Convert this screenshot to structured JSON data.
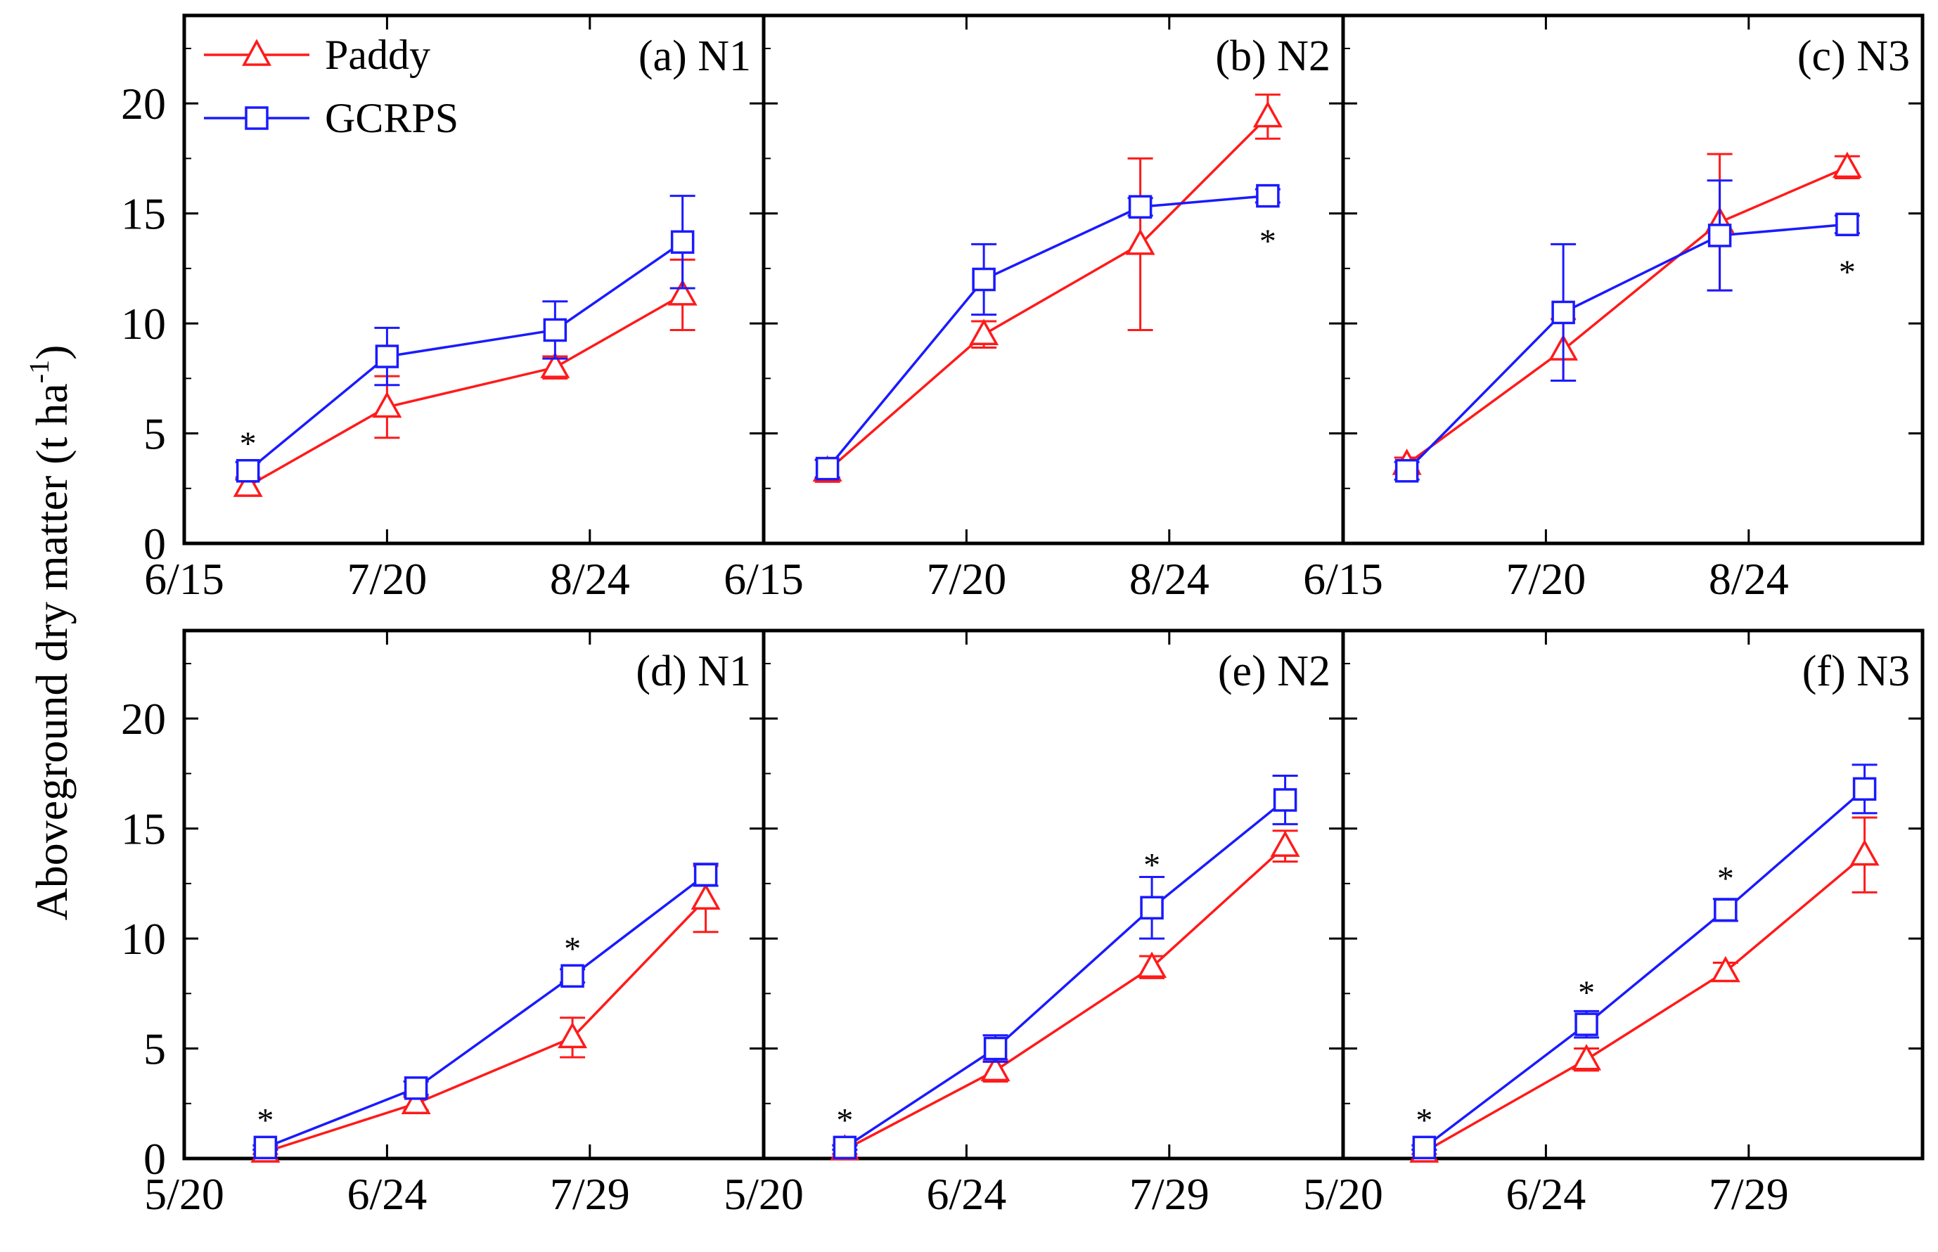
{
  "figure": {
    "ylabel": "Aboveground dry matter (t ha",
    "ylabel_sup": "-1",
    "ylabel_close": ")"
  },
  "legend": {
    "entries": [
      {
        "label": "Paddy",
        "color": "#ff1a1a",
        "marker": "triangle"
      },
      {
        "label": "GCRPS",
        "color": "#1a1aff",
        "marker": "square"
      }
    ]
  },
  "colors": {
    "paddy": "#ff1a1a",
    "gcrps": "#1a1aff",
    "axis": "#000000"
  },
  "chart_data": [
    {
      "type": "line",
      "panel": "(a) N1",
      "ylim": [
        0,
        24
      ],
      "yticks": [
        0,
        5,
        10,
        15,
        20
      ],
      "xlim": [
        0,
        100
      ],
      "xticks": [
        {
          "v": 0,
          "label": "6/15"
        },
        {
          "v": 35,
          "label": "7/20"
        },
        {
          "v": 70,
          "label": "8/24"
        }
      ],
      "series": [
        {
          "name": "Paddy",
          "x": [
            11,
            35,
            64,
            86
          ],
          "y": [
            2.6,
            6.2,
            8.0,
            11.3
          ],
          "err": [
            0.4,
            1.4,
            0.5,
            1.6
          ]
        },
        {
          "name": "GCRPS",
          "x": [
            11,
            35,
            64,
            86
          ],
          "y": [
            3.3,
            8.5,
            9.7,
            13.7
          ],
          "err": [
            0.4,
            1.3,
            1.3,
            2.1
          ]
        }
      ],
      "stars": [
        {
          "x": 11,
          "y": 4.6
        }
      ]
    },
    {
      "type": "line",
      "panel": "(b) N2",
      "ylim": [
        0,
        24
      ],
      "yticks": [
        0,
        5,
        10,
        15,
        20
      ],
      "xlim": [
        0,
        100
      ],
      "xticks": [
        {
          "v": 0,
          "label": "6/15"
        },
        {
          "v": 35,
          "label": "7/20"
        },
        {
          "v": 70,
          "label": "8/24"
        }
      ],
      "series": [
        {
          "name": "Paddy",
          "x": [
            11,
            38,
            65,
            87
          ],
          "y": [
            3.3,
            9.5,
            13.6,
            19.4
          ],
          "err": [
            0.5,
            0.6,
            3.9,
            1.0
          ]
        },
        {
          "name": "GCRPS",
          "x": [
            11,
            38,
            65,
            87
          ],
          "y": [
            3.4,
            12.0,
            15.3,
            15.8
          ],
          "err": [
            0.4,
            1.6,
            0.4,
            0.3
          ]
        }
      ],
      "stars": [
        {
          "x": 87,
          "y": 13.8
        }
      ]
    },
    {
      "type": "line",
      "panel": "(c) N3",
      "ylim": [
        0,
        24
      ],
      "yticks": [
        0,
        5,
        10,
        15,
        20
      ],
      "xlim": [
        0,
        100
      ],
      "xticks": [
        {
          "v": 0,
          "label": "6/15"
        },
        {
          "v": 35,
          "label": "7/20"
        },
        {
          "v": 70,
          "label": "8/24"
        }
      ],
      "series": [
        {
          "name": "Paddy",
          "x": [
            11,
            38,
            65,
            87
          ],
          "y": [
            3.6,
            8.8,
            14.6,
            17.1
          ],
          "err": [
            0.3,
            1.4,
            3.1,
            0.5
          ]
        },
        {
          "name": "GCRPS",
          "x": [
            11,
            38,
            65,
            87
          ],
          "y": [
            3.3,
            10.5,
            14.0,
            14.5
          ],
          "err": [
            0.4,
            3.1,
            2.5,
            0.4
          ]
        }
      ],
      "stars": [
        {
          "x": 87,
          "y": 12.4
        }
      ]
    },
    {
      "type": "line",
      "panel": "(d) N1",
      "ylim": [
        0,
        24
      ],
      "yticks": [
        0,
        5,
        10,
        15,
        20
      ],
      "xlim": [
        0,
        100
      ],
      "xticks": [
        {
          "v": 0,
          "label": "5/20"
        },
        {
          "v": 35,
          "label": "6/24"
        },
        {
          "v": 70,
          "label": "7/29"
        }
      ],
      "series": [
        {
          "name": "Paddy",
          "x": [
            14,
            40,
            67,
            90
          ],
          "y": [
            0.3,
            2.5,
            5.5,
            11.8
          ],
          "err": [
            0.1,
            0.3,
            0.9,
            1.5
          ]
        },
        {
          "name": "GCRPS",
          "x": [
            14,
            40,
            67,
            90
          ],
          "y": [
            0.5,
            3.2,
            8.3,
            12.9
          ],
          "err": [
            0.1,
            0.3,
            0.3,
            0.5
          ]
        }
      ],
      "stars": [
        {
          "x": 14,
          "y": 1.8
        },
        {
          "x": 67,
          "y": 9.6
        }
      ]
    },
    {
      "type": "line",
      "panel": "(e) N2",
      "ylim": [
        0,
        24
      ],
      "yticks": [
        0,
        5,
        10,
        15,
        20
      ],
      "xlim": [
        0,
        100
      ],
      "xticks": [
        {
          "v": 0,
          "label": "5/20"
        },
        {
          "v": 35,
          "label": "6/24"
        },
        {
          "v": 70,
          "label": "7/29"
        }
      ],
      "series": [
        {
          "name": "Paddy",
          "x": [
            14,
            40,
            67,
            90
          ],
          "y": [
            0.4,
            4.0,
            8.7,
            14.2
          ],
          "err": [
            0.2,
            0.5,
            0.5,
            0.7
          ]
        },
        {
          "name": "GCRPS",
          "x": [
            14,
            40,
            67,
            90
          ],
          "y": [
            0.5,
            5.0,
            11.4,
            16.3
          ],
          "err": [
            0.1,
            0.6,
            1.4,
            1.1
          ]
        }
      ],
      "stars": [
        {
          "x": 14,
          "y": 1.8
        },
        {
          "x": 67,
          "y": 13.4
        }
      ]
    },
    {
      "type": "line",
      "panel": "(f) N3",
      "ylim": [
        0,
        24
      ],
      "yticks": [
        0,
        5,
        10,
        15,
        20
      ],
      "xlim": [
        0,
        100
      ],
      "xticks": [
        {
          "v": 0,
          "label": "5/20"
        },
        {
          "v": 35,
          "label": "6/24"
        },
        {
          "v": 70,
          "label": "7/29"
        }
      ],
      "series": [
        {
          "name": "Paddy",
          "x": [
            14,
            42,
            66,
            90
          ],
          "y": [
            0.3,
            4.5,
            8.5,
            13.8
          ],
          "err": [
            0.1,
            0.5,
            0.4,
            1.7
          ]
        },
        {
          "name": "GCRPS",
          "x": [
            14,
            42,
            66,
            90
          ],
          "y": [
            0.5,
            6.1,
            11.3,
            16.8
          ],
          "err": [
            0.1,
            0.6,
            0.5,
            1.1
          ]
        }
      ],
      "stars": [
        {
          "x": 14,
          "y": 1.8
        },
        {
          "x": 42,
          "y": 7.6
        },
        {
          "x": 66,
          "y": 12.8
        }
      ]
    }
  ]
}
